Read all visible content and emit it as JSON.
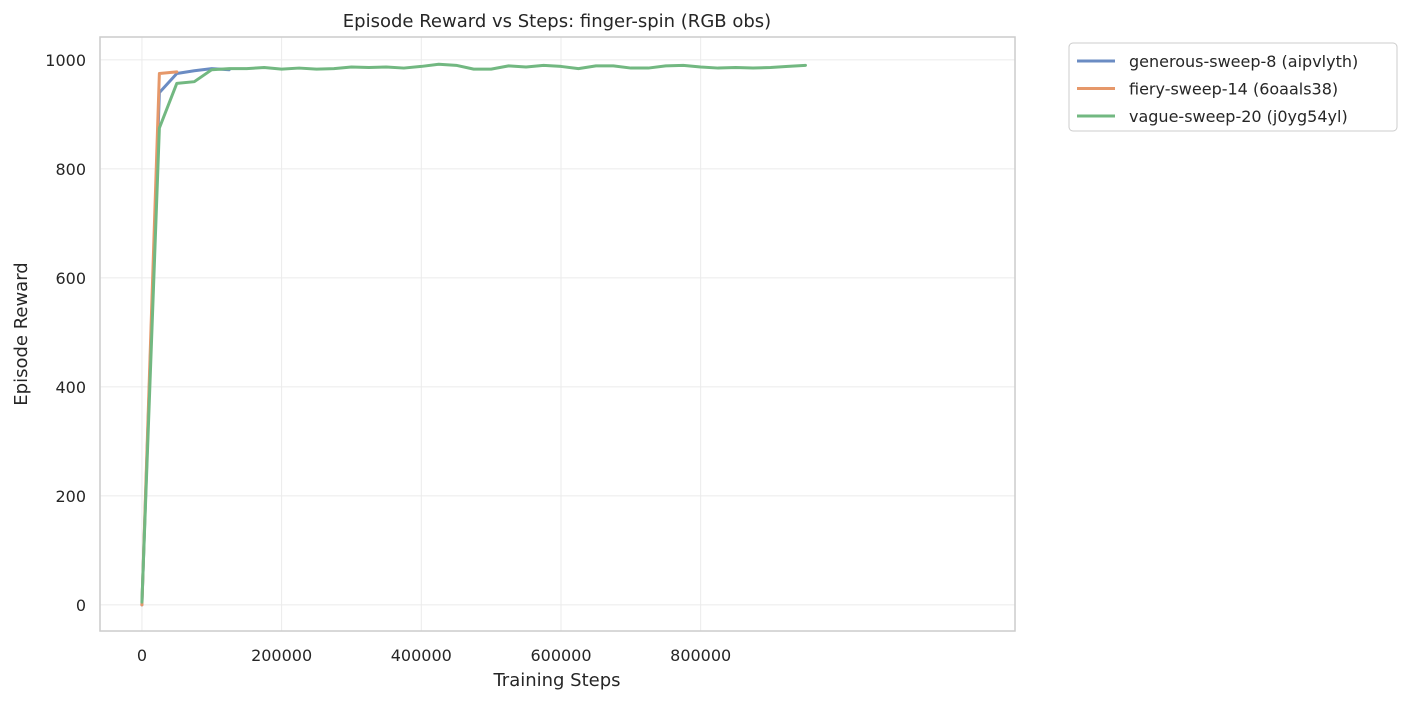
{
  "chart_data": {
    "type": "line",
    "title": "Episode Reward vs Steps: finger-spin (RGB obs)",
    "xlabel": "Training Steps",
    "ylabel": "Episode Reward",
    "xlim": [
      -60000,
      1250000
    ],
    "ylim": [
      -48,
      1042
    ],
    "xticks": [
      0,
      200000,
      400000,
      600000,
      800000
    ],
    "yticks": [
      0,
      200,
      400,
      600,
      800,
      1000
    ],
    "grid": true,
    "legend_position": "outside-top-right",
    "series": [
      {
        "name": "generous-sweep-8 (aipvlyth)",
        "color": "#6b8cc3",
        "x": [
          0,
          25000,
          50000,
          75000,
          100000,
          125000
        ],
        "y": [
          0,
          940,
          975,
          980,
          984,
          982
        ]
      },
      {
        "name": "fiery-sweep-14 (6oaals38)",
        "color": "#e6986a",
        "x": [
          0,
          25000,
          50000
        ],
        "y": [
          0,
          975,
          978
        ]
      },
      {
        "name": "vague-sweep-20 (j0yg54yl)",
        "color": "#72b881",
        "x": [
          0,
          25000,
          50000,
          75000,
          100000,
          125000,
          150000,
          175000,
          200000,
          225000,
          250000,
          275000,
          300000,
          325000,
          350000,
          375000,
          400000,
          425000,
          450000,
          475000,
          500000,
          525000,
          550000,
          575000,
          600000,
          625000,
          650000,
          675000,
          700000,
          725000,
          750000,
          775000,
          800000,
          825000,
          850000,
          875000,
          900000,
          925000,
          950000
        ],
        "y": [
          5,
          875,
          957,
          960,
          982,
          984,
          984,
          986,
          983,
          985,
          983,
          984,
          987,
          986,
          987,
          985,
          988,
          992,
          990,
          983,
          983,
          989,
          987,
          990,
          988,
          984,
          989,
          989,
          985,
          985,
          989,
          990,
          987,
          985,
          986,
          985,
          986,
          988,
          990
        ]
      }
    ]
  }
}
